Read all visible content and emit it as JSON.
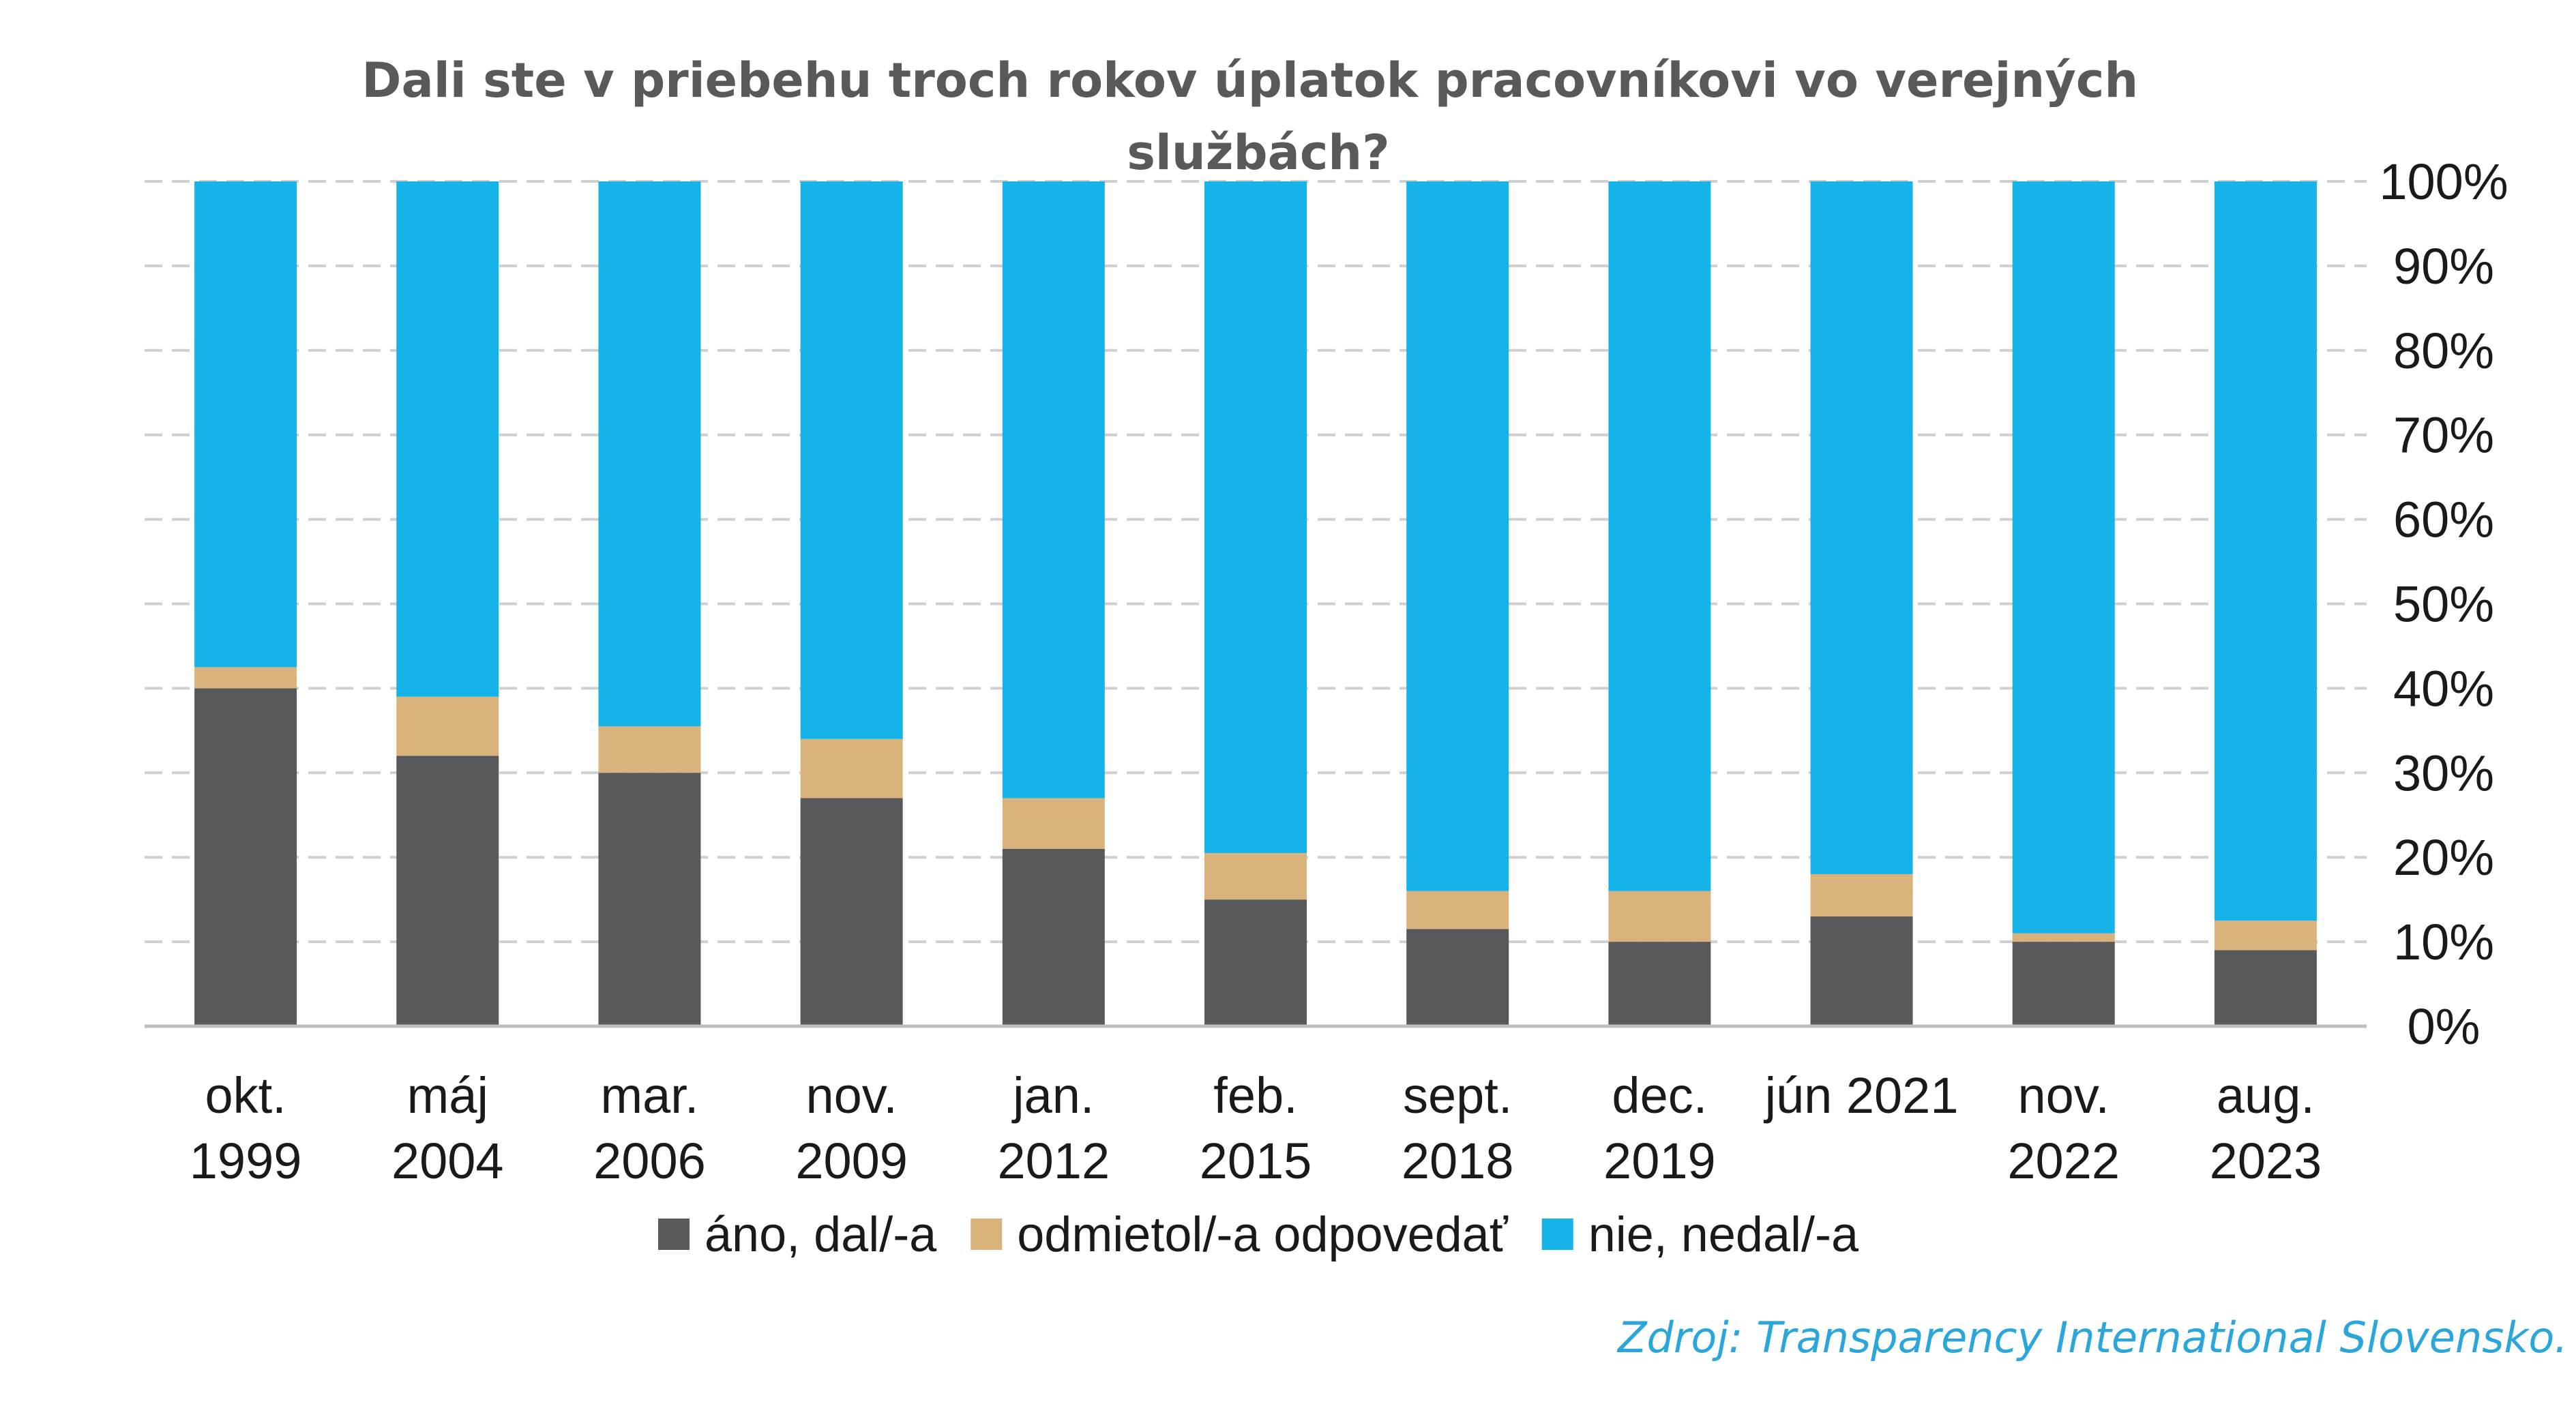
{
  "chart_data": {
    "type": "bar",
    "stacked": true,
    "title": "Dali ste v priebehu troch rokov úplatok pracovníkovi vo verejných službách?",
    "categories": [
      [
        "okt.",
        "1999"
      ],
      [
        "máj",
        "2004"
      ],
      [
        "mar.",
        "2006"
      ],
      [
        "nov.",
        "2009"
      ],
      [
        "jan.",
        "2012"
      ],
      [
        "feb.",
        "2015"
      ],
      [
        "sept.",
        "2018"
      ],
      [
        "dec.",
        "2019"
      ],
      [
        "jún 2021"
      ],
      [
        "nov.",
        "2022"
      ],
      [
        "aug.",
        "2023"
      ]
    ],
    "series": [
      {
        "name": "áno, dal/-a",
        "color": "#58595b",
        "values": [
          40,
          32,
          30,
          27,
          21,
          15,
          11.5,
          10,
          13,
          10,
          9
        ]
      },
      {
        "name": "odmietol/-a odpovedať",
        "color": "#d9b27c",
        "values": [
          2.5,
          7,
          5.5,
          7,
          6,
          5.5,
          4.5,
          6,
          5,
          1,
          3.5
        ]
      },
      {
        "name": "nie, nedal/-a",
        "color": "#15b3e8",
        "values": [
          57.5,
          61,
          64.5,
          66,
          73,
          79.5,
          84,
          84,
          82,
          89,
          87.5
        ]
      }
    ],
    "y_ticks": [
      "0%",
      "10%",
      "20%",
      "30%",
      "40%",
      "50%",
      "60%",
      "70%",
      "80%",
      "90%",
      "100%"
    ],
    "ylim": [
      0,
      100
    ],
    "y_axis_position": "right",
    "grid": true,
    "legend_position": "bottom"
  },
  "source": {
    "text": "Zdroj: Transparency International Slovensko.",
    "color": "#2aa6dc"
  }
}
